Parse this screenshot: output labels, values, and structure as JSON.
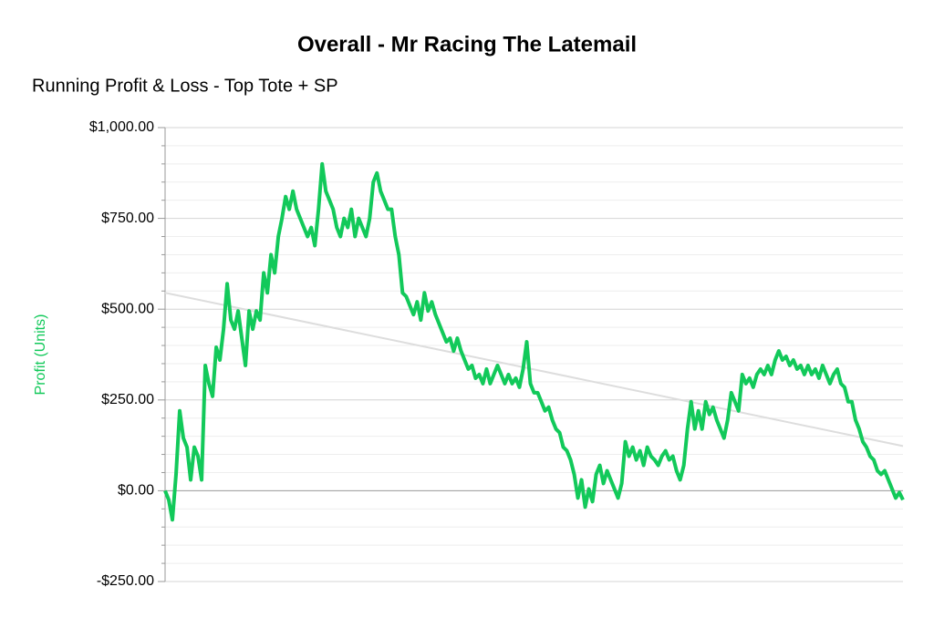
{
  "chart_data": {
    "type": "line",
    "title": "Overall - Mr Racing The Latemail",
    "subtitle": "Running Profit & Loss - Top Tote + SP",
    "y_label": "Profit (Units)",
    "ylim": [
      -250,
      1000
    ],
    "yticks": [
      {
        "value": -250,
        "label": "-$250.00"
      },
      {
        "value": 0,
        "label": "$0.00"
      },
      {
        "value": 250,
        "label": "$250.00"
      },
      {
        "value": 500,
        "label": "$500.00"
      },
      {
        "value": 750,
        "label": "$750.00"
      },
      {
        "value": 1000,
        "label": "$1,000.00"
      }
    ],
    "minor_yticks": [
      -200,
      -150,
      -100,
      -50,
      50,
      100,
      150,
      200,
      300,
      350,
      400,
      450,
      550,
      600,
      650,
      700,
      800,
      850,
      900,
      950
    ],
    "grid": true,
    "series": [
      {
        "color": "#12c95a",
        "values": [
          0,
          -25,
          -80,
          45,
          220,
          145,
          120,
          30,
          120,
          95,
          30,
          345,
          295,
          260,
          395,
          360,
          445,
          570,
          470,
          445,
          495,
          420,
          345,
          495,
          445,
          495,
          470,
          600,
          545,
          650,
          600,
          700,
          750,
          810,
          775,
          825,
          775,
          750,
          725,
          700,
          725,
          675,
          775,
          900,
          825,
          800,
          775,
          725,
          700,
          750,
          725,
          775,
          700,
          750,
          725,
          700,
          750,
          850,
          875,
          825,
          800,
          775,
          775,
          700,
          650,
          545,
          535,
          510,
          485,
          520,
          470,
          545,
          495,
          520,
          485,
          460,
          435,
          410,
          420,
          385,
          420,
          385,
          360,
          335,
          345,
          310,
          320,
          295,
          335,
          295,
          320,
          345,
          320,
          295,
          320,
          295,
          310,
          285,
          335,
          410,
          295,
          270,
          270,
          245,
          220,
          230,
          195,
          170,
          160,
          120,
          110,
          85,
          45,
          -20,
          30,
          -45,
          5,
          -30,
          45,
          70,
          20,
          55,
          30,
          5,
          -20,
          20,
          135,
          95,
          120,
          85,
          110,
          70,
          120,
          95,
          85,
          70,
          95,
          110,
          85,
          95,
          55,
          30,
          70,
          170,
          245,
          170,
          220,
          170,
          245,
          210,
          230,
          195,
          170,
          145,
          195,
          270,
          245,
          220,
          320,
          295,
          310,
          285,
          320,
          335,
          320,
          345,
          320,
          360,
          385,
          360,
          370,
          345,
          360,
          335,
          345,
          320,
          345,
          320,
          335,
          310,
          345,
          320,
          295,
          320,
          335,
          295,
          285,
          245,
          245,
          195,
          170,
          135,
          120,
          95,
          85,
          55,
          45,
          55,
          30,
          5,
          -20,
          -5,
          -25
        ]
      }
    ],
    "trend_line": {
      "color": "#dddddd",
      "values": [
        545,
        123
      ]
    }
  }
}
